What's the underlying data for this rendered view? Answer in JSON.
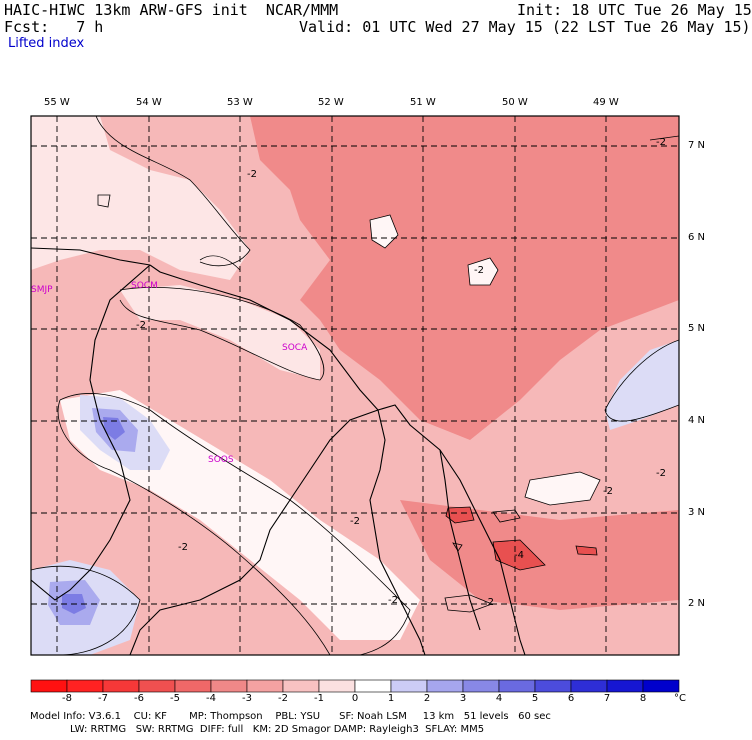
{
  "header": {
    "title": "HAIC-HIWC 13km ARW-GFS init  NCAR/MMM",
    "init": "Init: 18 UTC Tue 26 May 15",
    "fcst": "Fcst:   7 h",
    "valid": "Valid: 01 UTC Wed 27 May 15 (22 LST Tue 26 May 15)",
    "field": "Lifted index"
  },
  "map": {
    "longitudes": [
      "55 W",
      "54 W",
      "53 W",
      "52 W",
      "51 W",
      "50 W",
      "49 W"
    ],
    "latitudes": [
      "7 N",
      "6 N",
      "5 N",
      "4 N",
      "3 N",
      "2 N"
    ],
    "stations": [
      "SMJP",
      "SOCM",
      "SOCA",
      "SOOS"
    ],
    "contour_labels": [
      "-2",
      "-2",
      "-2",
      "-2",
      "-2",
      "-2",
      "-2",
      "-2",
      "-2",
      "-2",
      "-4",
      "-2"
    ],
    "colors": {
      "base": "#f6b8b8",
      "warm_dark": "#f08a8a",
      "light": "#fde6e6",
      "white": "#fff6f6",
      "blue_light": "#dcdcf6",
      "blue_mid": "#aaaaee",
      "blue_deep": "#7c7ce4",
      "strong": "#e85050"
    }
  },
  "colorbar": {
    "ticks": [
      "-8",
      "-7",
      "-6",
      "-5",
      "-4",
      "-3",
      "-2",
      "-1",
      "0",
      "1",
      "2",
      "3",
      "4",
      "5",
      "6",
      "7",
      "8"
    ],
    "unit": "°C",
    "colors": [
      "#ff1111",
      "#ff2222",
      "#f63838",
      "#f05050",
      "#f06868",
      "#f08888",
      "#f4a2a2",
      "#f8c2c2",
      "#fbe0e0",
      "#ffffff",
      "#ccccf6",
      "#a6a6ee",
      "#8888e6",
      "#6a6ae0",
      "#4c4cdc",
      "#2e2ed6",
      "#1616d2",
      "#0000cc"
    ]
  },
  "footer": {
    "line1": "Model Info: V3.6.1    CU: KF       MP: Thompson    PBL: YSU      SF: Noah LSM     13 km   51 levels   60 sec",
    "line2": "LW: RRTMG   SW: RRTMG  DIFF: full   KM: 2D Smagor DAMP: Rayleigh3  SFLAY: MM5"
  }
}
